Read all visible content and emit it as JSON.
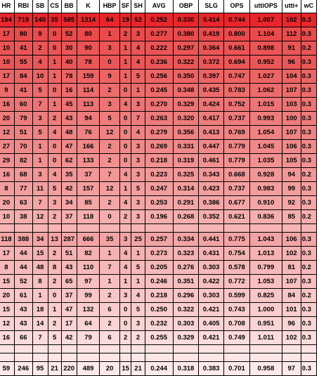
{
  "columns": [
    "HR",
    "RBI",
    "SB",
    "CS",
    "BB",
    "K",
    "HBP",
    "SF",
    "SH",
    "AVG",
    "OBP",
    "SLG",
    "OPS",
    "uttiOPS",
    "utti+",
    "wC"
  ],
  "rows": [
    {
      "bg": "#e8262b",
      "cells": [
        "194",
        "719",
        "140",
        "35",
        "585",
        "1314",
        "64",
        "19",
        "52",
        "0.252",
        "0.330",
        "0.414",
        "0.744",
        "1.007",
        "102",
        "0.3"
      ]
    },
    {
      "bg": "#ea4a4b",
      "cells": [
        "17",
        "80",
        "9",
        "0",
        "52",
        "80",
        "1",
        "2",
        "3",
        "0.277",
        "0.380",
        "0.419",
        "0.800",
        "1.104",
        "112",
        "0.3"
      ]
    },
    {
      "bg": "#eb5556",
      "cells": [
        "10",
        "41",
        "2",
        "0",
        "30",
        "90",
        "3",
        "1",
        "4",
        "0.222",
        "0.297",
        "0.364",
        "0.661",
        "0.898",
        "91",
        "0.2"
      ]
    },
    {
      "bg": "#eb5758",
      "cells": [
        "10",
        "55",
        "4",
        "1",
        "40",
        "78",
        "0",
        "1",
        "4",
        "0.236",
        "0.322",
        "0.372",
        "0.694",
        "0.952",
        "96",
        "0.3"
      ]
    },
    {
      "bg": "#ed6464",
      "cells": [
        "17",
        "84",
        "10",
        "1",
        "78",
        "159",
        "9",
        "1",
        "5",
        "0.256",
        "0.350",
        "0.397",
        "0.747",
        "1.027",
        "104",
        "0.3"
      ]
    },
    {
      "bg": "#ec6c6b",
      "cells": [
        "9",
        "41",
        "5",
        "0",
        "16",
        "114",
        "2",
        "0",
        "1",
        "0.245",
        "0.348",
        "0.435",
        "0.783",
        "1.062",
        "107",
        "0.3"
      ]
    },
    {
      "bg": "#ed7474",
      "cells": [
        "16",
        "60",
        "7",
        "1",
        "45",
        "113",
        "3",
        "4",
        "3",
        "0.270",
        "0.329",
        "0.424",
        "0.752",
        "1.015",
        "103",
        "0.3"
      ]
    },
    {
      "bg": "#ee7c7c",
      "cells": [
        "20",
        "79",
        "3",
        "2",
        "43",
        "94",
        "5",
        "0",
        "7",
        "0.263",
        "0.320",
        "0.417",
        "0.737",
        "0.993",
        "100",
        "0.3"
      ]
    },
    {
      "bg": "#ef8383",
      "cells": [
        "12",
        "51",
        "5",
        "4",
        "48",
        "76",
        "12",
        "0",
        "4",
        "0.279",
        "0.356",
        "0.413",
        "0.769",
        "1.054",
        "107",
        "0.3"
      ]
    },
    {
      "bg": "#f08989",
      "cells": [
        "27",
        "70",
        "1",
        "0",
        "47",
        "166",
        "2",
        "0",
        "3",
        "0.269",
        "0.331",
        "0.447",
        "0.779",
        "1.045",
        "106",
        "0.3"
      ]
    },
    {
      "bg": "#f19090",
      "cells": [
        "29",
        "82",
        "1",
        "0",
        "62",
        "133",
        "2",
        "0",
        "3",
        "0.218",
        "0.319",
        "0.461",
        "0.779",
        "1.035",
        "105",
        "0.3"
      ]
    },
    {
      "bg": "#f29797",
      "cells": [
        "16",
        "68",
        "3",
        "4",
        "35",
        "37",
        "7",
        "4",
        "3",
        "0.223",
        "0.325",
        "0.343",
        "0.668",
        "0.928",
        "94",
        "0.2"
      ]
    },
    {
      "bg": "#f39e9e",
      "cells": [
        "8",
        "77",
        "11",
        "5",
        "42",
        "157",
        "12",
        "1",
        "5",
        "0.247",
        "0.314",
        "0.423",
        "0.737",
        "0.983",
        "99",
        "0.3"
      ]
    },
    {
      "bg": "#f4a6a6",
      "cells": [
        "20",
        "63",
        "7",
        "3",
        "34",
        "85",
        "2",
        "4",
        "3",
        "0.253",
        "0.291",
        "0.386",
        "0.677",
        "0.910",
        "92",
        "0.3"
      ]
    },
    {
      "bg": "#f5aeae",
      "cells": [
        "10",
        "38",
        "12",
        "2",
        "37",
        "118",
        "0",
        "2",
        "3",
        "0.196",
        "0.268",
        "0.352",
        "0.621",
        "0.836",
        "85",
        "0.2"
      ]
    },
    {
      "bg": "#f6b5b5",
      "blank": true,
      "cells": [
        "",
        "",
        "",
        "",
        "",
        "",
        "",
        "",
        "",
        "",
        "",
        "",
        "",
        "",
        "",
        ""
      ]
    },
    {
      "bg": "#f2a4a4",
      "cells": [
        "118",
        "388",
        "34",
        "13",
        "287",
        "666",
        "35",
        "3",
        "25",
        "0.257",
        "0.334",
        "0.441",
        "0.775",
        "1.043",
        "106",
        "0.3"
      ]
    },
    {
      "bg": "#f5b2b2",
      "cells": [
        "17",
        "44",
        "15",
        "2",
        "51",
        "82",
        "1",
        "4",
        "1",
        "0.273",
        "0.323",
        "0.431",
        "0.754",
        "1.013",
        "102",
        "0.3"
      ]
    },
    {
      "bg": "#f6b8b8",
      "cells": [
        "8",
        "44",
        "48",
        "8",
        "43",
        "110",
        "7",
        "4",
        "5",
        "0.205",
        "0.276",
        "0.303",
        "0.578",
        "0.799",
        "81",
        "0.2"
      ]
    },
    {
      "bg": "#f7bfbf",
      "cells": [
        "15",
        "52",
        "8",
        "2",
        "65",
        "97",
        "1",
        "1",
        "1",
        "0.246",
        "0.351",
        "0.422",
        "0.772",
        "1.053",
        "107",
        "0.3"
      ]
    },
    {
      "bg": "#f8c6c6",
      "cells": [
        "20",
        "61",
        "1",
        "0",
        "37",
        "99",
        "2",
        "3",
        "4",
        "0.218",
        "0.296",
        "0.303",
        "0.599",
        "0.825",
        "84",
        "0.2"
      ]
    },
    {
      "bg": "#f9cdcd",
      "cells": [
        "15",
        "43",
        "18",
        "1",
        "47",
        "132",
        "6",
        "0",
        "5",
        "0.250",
        "0.322",
        "0.421",
        "0.743",
        "1.000",
        "101",
        "0.3"
      ]
    },
    {
      "bg": "#fad4d4",
      "cells": [
        "12",
        "43",
        "14",
        "2",
        "17",
        "64",
        "2",
        "0",
        "3",
        "0.232",
        "0.303",
        "0.405",
        "0.708",
        "0.951",
        "96",
        "0.3"
      ]
    },
    {
      "bg": "#fbdbdb",
      "cells": [
        "16",
        "66",
        "7",
        "5",
        "42",
        "79",
        "6",
        "2",
        "2",
        "0.255",
        "0.329",
        "0.421",
        "0.749",
        "1.011",
        "102",
        "0.3"
      ]
    },
    {
      "bg": "#fce2e2",
      "blank": true,
      "cells": [
        "",
        "",
        "",
        "",
        "",
        "",
        "",
        "",
        "",
        "",
        "",
        "",
        "",
        "",
        "",
        ""
      ]
    },
    {
      "bg": "#fce6e6",
      "blank": true,
      "cells": [
        "",
        "",
        "",
        "",
        "",
        "",
        "",
        "",
        "",
        "",
        "",
        "",
        "",
        "",
        "",
        ""
      ]
    },
    {
      "bg": "#fde9e9",
      "cells": [
        "59",
        "246",
        "95",
        "21",
        "220",
        "489",
        "20",
        "15",
        "21",
        "0.244",
        "0.318",
        "0.383",
        "0.701",
        "0.958",
        "97",
        "0.3"
      ]
    }
  ]
}
